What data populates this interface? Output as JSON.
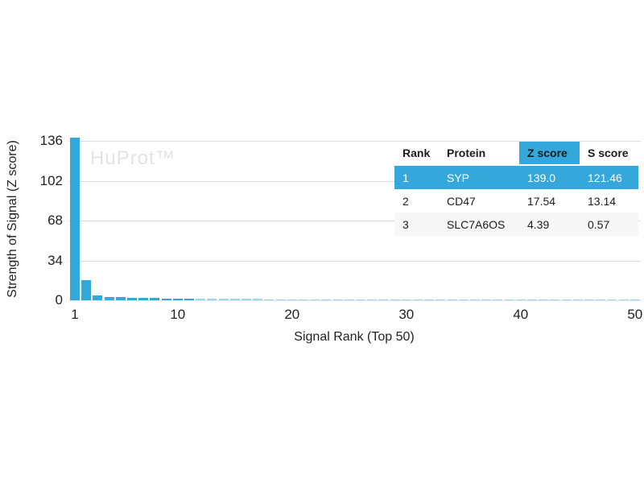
{
  "watermark": "HuProt™",
  "colors": {
    "accent": "#35a8db",
    "accent_faint": "#9ed6ec",
    "gridline": "#dcdcdc",
    "baseline": "#e2e2e2",
    "watermark": "#e3e3e3",
    "row_stripe": "#f7f7f7"
  },
  "chart_data": {
    "type": "bar",
    "title": "",
    "xlabel": "Signal Rank (Top 50)",
    "ylabel": "Strength of Signal (Z score)",
    "x_ticks": [
      1,
      10,
      20,
      30,
      40,
      50
    ],
    "y_ticks": [
      0,
      34,
      68,
      102,
      136
    ],
    "xlim": [
      1,
      50
    ],
    "ylim": [
      0,
      140
    ],
    "grid": "horizontal",
    "legend": "none",
    "categories_note": "x = signal rank 1..50",
    "values": [
      139.0,
      17.54,
      4.39,
      2.6,
      2.45,
      2.3,
      2.2,
      2.1,
      1.6,
      1.45,
      1.35,
      1.28,
      1.22,
      1.18,
      1.14,
      1.1,
      1.07,
      1.04,
      1.01,
      0.99,
      0.97,
      0.95,
      0.93,
      0.91,
      0.9,
      0.88,
      0.87,
      0.86,
      0.85,
      0.84,
      0.83,
      0.82,
      0.81,
      0.8,
      0.79,
      0.78,
      0.77,
      0.76,
      0.75,
      0.74,
      0.73,
      0.72,
      0.71,
      0.7,
      0.69,
      0.68,
      0.67,
      0.66,
      0.65,
      0.64
    ]
  },
  "table": {
    "headers": [
      "Rank",
      "Protein",
      "Z score",
      "S score"
    ],
    "highlighted_header": "Z score",
    "rows": [
      {
        "rank": "1",
        "protein": "SYP",
        "z": "139.0",
        "s": "121.46",
        "highlight": true
      },
      {
        "rank": "2",
        "protein": "CD47",
        "z": "17.54",
        "s": "13.14",
        "highlight": false
      },
      {
        "rank": "3",
        "protein": "SLC7A6OS",
        "z": "4.39",
        "s": "0.57",
        "highlight": false
      }
    ]
  }
}
